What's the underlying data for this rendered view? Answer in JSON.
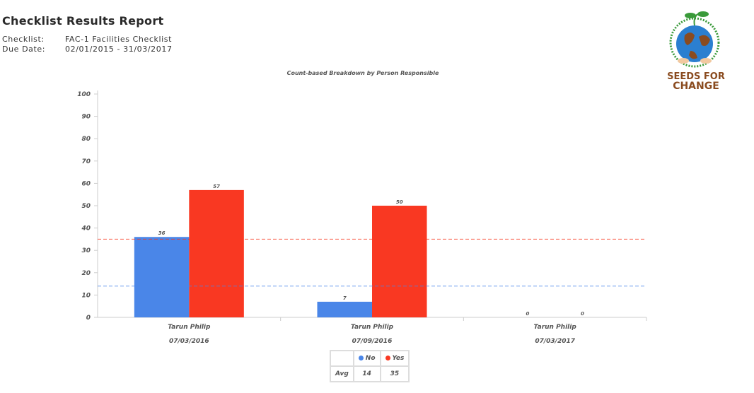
{
  "header": {
    "title": "Checklist Results Report",
    "checklist_label": "Checklist:",
    "checklist_value": "FAC-1 Facilities Checklist",
    "due_label": "Due Date:",
    "due_value": "02/01/2015 - 31/03/2017"
  },
  "logo": {
    "text": "SEEDS FOR CHANGE"
  },
  "chart_data": {
    "type": "bar",
    "title": "Count-based Breakdown by Person Responsible",
    "categories": [
      [
        "Tarun Philip",
        "07/03/2016"
      ],
      [
        "Tarun Philip",
        "07/09/2016"
      ],
      [
        "Tarun Philip",
        "07/03/2017"
      ]
    ],
    "ylim": [
      0,
      100
    ],
    "yticks": [
      0,
      10,
      20,
      30,
      40,
      50,
      60,
      70,
      80,
      90,
      100
    ],
    "series": [
      {
        "name": "No",
        "color": "#4a86e8",
        "values": [
          36,
          7,
          0
        ],
        "avg": 14
      },
      {
        "name": "Yes",
        "color": "#f93822",
        "values": [
          57,
          50,
          0
        ],
        "avg": 35
      }
    ],
    "avg_lines": true,
    "grid": false
  },
  "avg_table": {
    "row_label": "Avg",
    "no_label": "No",
    "yes_label": "Yes",
    "no_value": "14",
    "yes_value": "35"
  }
}
